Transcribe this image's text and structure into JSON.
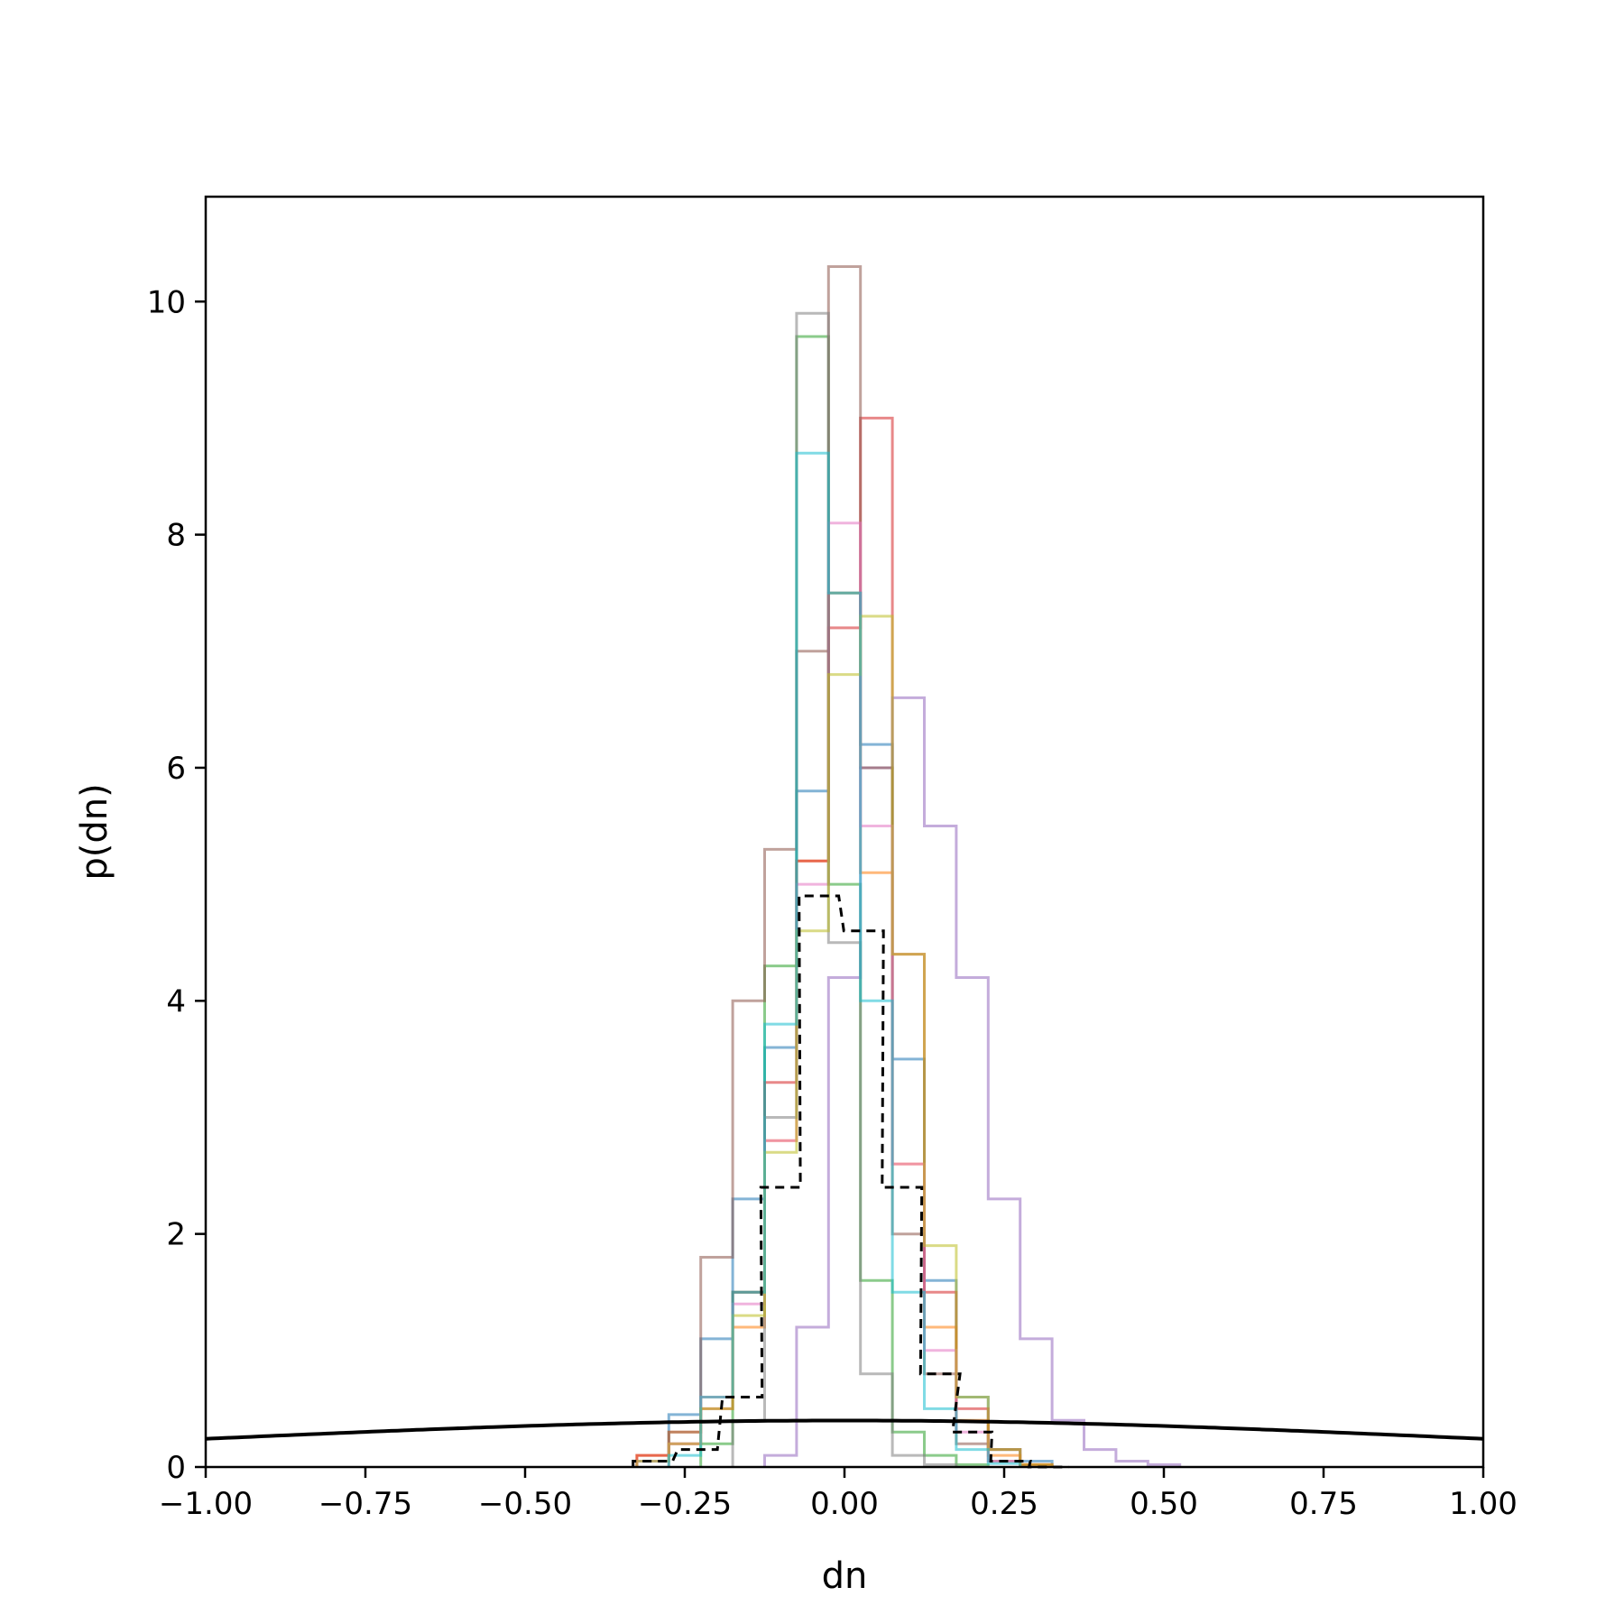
{
  "chart_data": {
    "type": "histogram",
    "xlabel": "dn",
    "ylabel": "p(dn)",
    "xlim": [
      -1.0,
      1.0
    ],
    "ylim": [
      0,
      10.9
    ],
    "grid": false,
    "legend": "none",
    "x_ticks": [
      "−1.00",
      "−0.75",
      "−0.50",
      "−0.25",
      "0.00",
      "0.25",
      "0.50",
      "0.75",
      "1.00"
    ],
    "y_ticks": [
      "0",
      "2",
      "4",
      "6",
      "8",
      "10"
    ],
    "reference_curve": {
      "kind": "normal-pdf",
      "mean": 0,
      "std": 1,
      "color": "#000000"
    },
    "series": [
      {
        "color": "#1f77b4",
        "style": "solid",
        "alpha": 0.55,
        "x": [
          -0.3,
          -0.25,
          -0.2,
          -0.15,
          -0.1,
          -0.05,
          0.0,
          0.05,
          0.1,
          0.15,
          0.2,
          0.25,
          0.3
        ],
        "values": [
          0.05,
          0.45,
          1.1,
          2.3,
          3.6,
          5.8,
          7.5,
          6.2,
          3.5,
          1.6,
          0.6,
          0.15,
          0.05
        ]
      },
      {
        "color": "#ff7f0e",
        "style": "solid",
        "alpha": 0.55,
        "x": [
          -0.3,
          -0.25,
          -0.2,
          -0.15,
          -0.1,
          -0.05,
          0.0,
          0.05,
          0.1,
          0.15,
          0.2,
          0.25,
          0.3
        ],
        "values": [
          0.1,
          0.3,
          0.6,
          1.2,
          2.8,
          5.2,
          7.5,
          5.1,
          2.6,
          1.2,
          0.4,
          0.1,
          0.02
        ]
      },
      {
        "color": "#2ca02c",
        "style": "solid",
        "alpha": 0.55,
        "x": [
          -0.2,
          -0.15,
          -0.1,
          -0.05,
          0.0,
          0.05,
          0.1,
          0.15,
          0.2
        ],
        "values": [
          0.2,
          1.5,
          4.3,
          9.7,
          5.0,
          1.6,
          0.3,
          0.1,
          0.02
        ]
      },
      {
        "color": "#d62728",
        "style": "solid",
        "alpha": 0.55,
        "x": [
          -0.3,
          -0.25,
          -0.2,
          -0.15,
          -0.1,
          -0.05,
          0.0,
          0.05,
          0.1,
          0.15,
          0.2,
          0.25,
          0.3
        ],
        "values": [
          0.1,
          0.2,
          0.5,
          1.5,
          3.3,
          5.2,
          7.2,
          9.0,
          4.4,
          1.5,
          0.5,
          0.15,
          0.02
        ]
      },
      {
        "color": "#9467bd",
        "style": "solid",
        "alpha": 0.55,
        "x": [
          -0.1,
          -0.05,
          0.0,
          0.05,
          0.1,
          0.15,
          0.2,
          0.25,
          0.3,
          0.35,
          0.4,
          0.45,
          0.5
        ],
        "values": [
          0.1,
          1.2,
          4.2,
          6.0,
          6.6,
          5.5,
          4.2,
          2.3,
          1.1,
          0.4,
          0.15,
          0.05,
          0.02
        ]
      },
      {
        "color": "#8c564b",
        "style": "solid",
        "alpha": 0.55,
        "x": [
          -0.25,
          -0.2,
          -0.15,
          -0.1,
          -0.05,
          0.0,
          0.05,
          0.1,
          0.15,
          0.2,
          0.25
        ],
        "values": [
          0.3,
          1.8,
          4.0,
          5.3,
          7.0,
          10.3,
          6.0,
          2.0,
          0.8,
          0.2,
          0.05
        ]
      },
      {
        "color": "#e377c2",
        "style": "solid",
        "alpha": 0.55,
        "x": [
          -0.3,
          -0.25,
          -0.2,
          -0.15,
          -0.1,
          -0.05,
          0.0,
          0.05,
          0.1,
          0.15,
          0.2,
          0.25
        ],
        "values": [
          0.05,
          0.2,
          0.6,
          1.4,
          2.8,
          5.0,
          8.1,
          5.5,
          2.6,
          1.0,
          0.3,
          0.05
        ]
      },
      {
        "color": "#7f7f7f",
        "style": "solid",
        "alpha": 0.55,
        "x": [
          -0.15,
          -0.1,
          -0.05,
          0.0,
          0.05,
          0.1,
          0.15
        ],
        "values": [
          0.4,
          3.0,
          9.9,
          4.5,
          0.8,
          0.1,
          0.02
        ]
      },
      {
        "color": "#bcbd22",
        "style": "solid",
        "alpha": 0.55,
        "x": [
          -0.3,
          -0.25,
          -0.2,
          -0.15,
          -0.1,
          -0.05,
          0.0,
          0.05,
          0.1,
          0.15,
          0.2,
          0.25,
          0.3
        ],
        "values": [
          0.05,
          0.2,
          0.5,
          1.3,
          2.7,
          4.6,
          6.8,
          7.3,
          4.4,
          1.9,
          0.6,
          0.15,
          0.02
        ]
      },
      {
        "color": "#17becf",
        "style": "solid",
        "alpha": 0.55,
        "x": [
          -0.25,
          -0.2,
          -0.15,
          -0.1,
          -0.05,
          0.0,
          0.05,
          0.1,
          0.15,
          0.2,
          0.25
        ],
        "values": [
          0.1,
          0.6,
          1.5,
          3.8,
          8.7,
          7.5,
          4.0,
          1.5,
          0.5,
          0.15,
          0.03
        ]
      },
      {
        "color": "#000000",
        "style": "dashed",
        "alpha": 1.0,
        "x": [
          -0.3,
          -0.23,
          -0.16,
          -0.1,
          -0.04,
          0.03,
          0.09,
          0.15,
          0.2,
          0.26,
          0.32
        ],
        "values": [
          0.05,
          0.15,
          0.6,
          2.4,
          4.9,
          4.6,
          2.4,
          0.8,
          0.3,
          0.05,
          0.0
        ]
      }
    ]
  }
}
